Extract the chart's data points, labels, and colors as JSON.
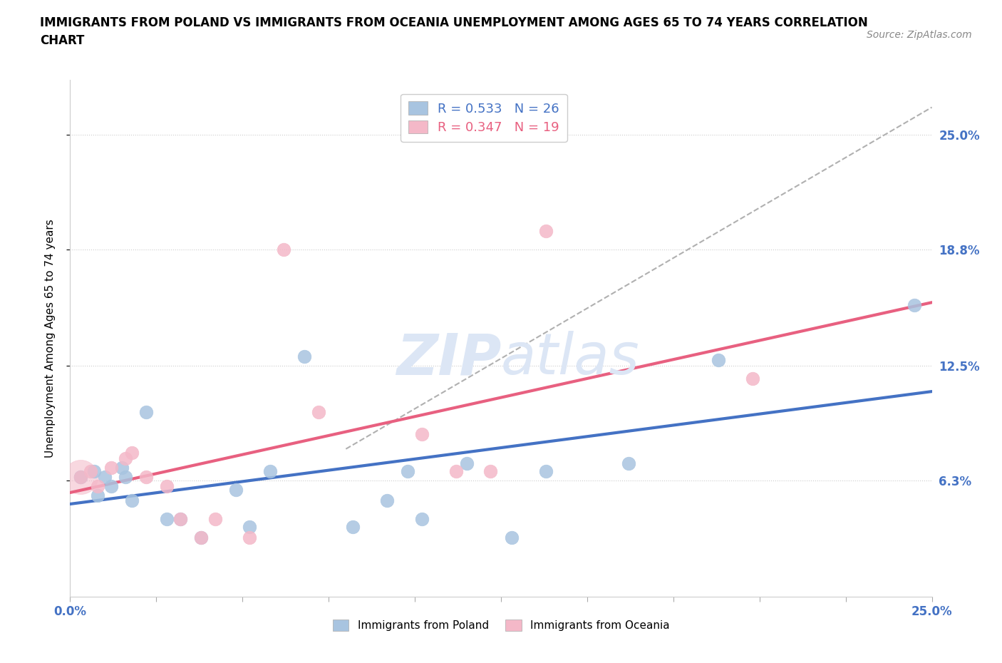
{
  "title_line1": "IMMIGRANTS FROM POLAND VS IMMIGRANTS FROM OCEANIA UNEMPLOYMENT AMONG AGES 65 TO 74 YEARS CORRELATION",
  "title_line2": "CHART",
  "source": "Source: ZipAtlas.com",
  "ylabel": "Unemployment Among Ages 65 to 74 years",
  "xlim": [
    0.0,
    0.25
  ],
  "ylim": [
    0.0,
    0.28
  ],
  "R_poland": 0.533,
  "N_poland": 26,
  "R_oceania": 0.347,
  "N_oceania": 19,
  "poland_color": "#a8c4e0",
  "oceania_color": "#f4b8c8",
  "poland_line_color": "#4472c4",
  "oceania_line_color": "#e86080",
  "gray_line_color": "#b0b0b0",
  "blue_text_color": "#4472c4",
  "pink_text_color": "#e86080",
  "poland_scatter_x": [
    0.003,
    0.007,
    0.008,
    0.01,
    0.012,
    0.015,
    0.016,
    0.018,
    0.022,
    0.028,
    0.032,
    0.038,
    0.048,
    0.052,
    0.058,
    0.068,
    0.082,
    0.092,
    0.098,
    0.102,
    0.115,
    0.128,
    0.138,
    0.162,
    0.188,
    0.245
  ],
  "poland_scatter_y": [
    0.065,
    0.068,
    0.055,
    0.065,
    0.06,
    0.07,
    0.065,
    0.052,
    0.1,
    0.042,
    0.042,
    0.032,
    0.058,
    0.038,
    0.068,
    0.13,
    0.038,
    0.052,
    0.068,
    0.042,
    0.072,
    0.032,
    0.068,
    0.072,
    0.128,
    0.158
  ],
  "oceania_scatter_x": [
    0.003,
    0.006,
    0.008,
    0.012,
    0.016,
    0.018,
    0.022,
    0.028,
    0.032,
    0.038,
    0.042,
    0.052,
    0.062,
    0.072,
    0.102,
    0.112,
    0.122,
    0.138,
    0.198
  ],
  "oceania_scatter_y": [
    0.065,
    0.068,
    0.06,
    0.07,
    0.075,
    0.078,
    0.065,
    0.06,
    0.042,
    0.032,
    0.042,
    0.032,
    0.188,
    0.1,
    0.088,
    0.068,
    0.068,
    0.198,
    0.118
  ],
  "watermark_zip": "ZIP",
  "watermark_atlas": "atlas",
  "watermark_color": "#dce6f5"
}
